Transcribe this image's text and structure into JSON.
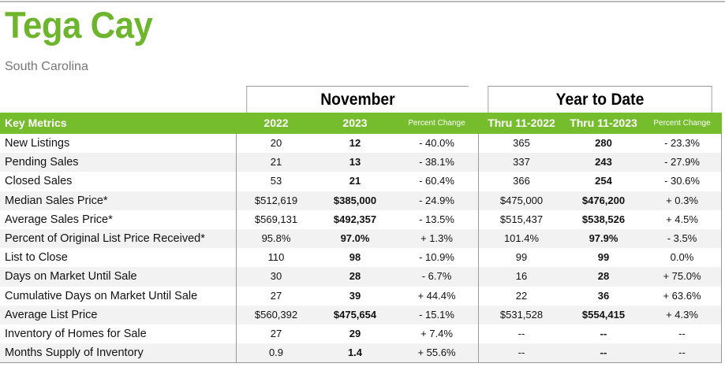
{
  "header": {
    "title": "Tega Cay",
    "subtitle": "South Carolina"
  },
  "table": {
    "group_headers": [
      "November",
      "Year to Date"
    ],
    "columns": [
      "Key Metrics",
      "2022",
      "2023",
      "Percent Change",
      "Thru 11-2022",
      "Thru 11-2023",
      "Percent Change"
    ],
    "rows": [
      [
        "New Listings",
        "20",
        "12",
        "- 40.0%",
        "365",
        "280",
        "- 23.3%"
      ],
      [
        "Pending Sales",
        "21",
        "13",
        "- 38.1%",
        "337",
        "243",
        "- 27.9%"
      ],
      [
        "Closed Sales",
        "53",
        "21",
        "- 60.4%",
        "366",
        "254",
        "- 30.6%"
      ],
      [
        "Median Sales Price*",
        "$512,619",
        "$385,000",
        "- 24.9%",
        "$475,000",
        "$476,200",
        "+ 0.3%"
      ],
      [
        "Average Sales Price*",
        "$569,131",
        "$492,357",
        "- 13.5%",
        "$515,437",
        "$538,526",
        "+ 4.5%"
      ],
      [
        "Percent of Original List Price Received*",
        "95.8%",
        "97.0%",
        "+ 1.3%",
        "101.4%",
        "97.9%",
        "- 3.5%"
      ],
      [
        "List to Close",
        "110",
        "98",
        "- 10.9%",
        "99",
        "99",
        "0.0%"
      ],
      [
        "Days on Market Until Sale",
        "30",
        "28",
        "- 6.7%",
        "16",
        "28",
        "+ 75.0%"
      ],
      [
        "Cumulative Days on Market Until Sale",
        "27",
        "39",
        "+ 44.4%",
        "22",
        "36",
        "+ 63.6%"
      ],
      [
        "Average List Price",
        "$560,392",
        "$475,654",
        "- 15.1%",
        "$531,528",
        "$554,415",
        "+ 4.3%"
      ],
      [
        "Inventory of Homes for Sale",
        "27",
        "29",
        "+ 7.4%",
        "--",
        "--",
        "--"
      ],
      [
        "Months Supply of Inventory",
        "0.9",
        "1.4",
        "+ 55.6%",
        "--",
        "--",
        "--"
      ]
    ]
  }
}
